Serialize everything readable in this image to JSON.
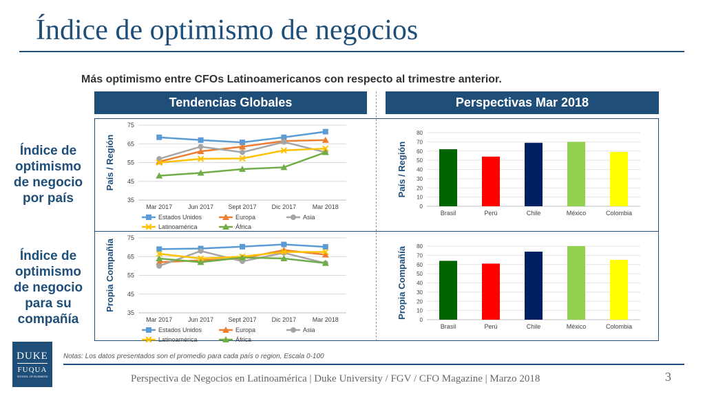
{
  "page": {
    "title": "Índice de optimismo de negocios",
    "subtitle": "Más optimismo entre CFOs Latinoamericanos con respecto al trimestre anterior.",
    "header_left": "Tendencias Globales",
    "header_right": "Perspectivas Mar 2018",
    "row1_label": "Índice de optimismo de negocio por país",
    "row2_label": "Índice de optimismo de negocio para su compañía",
    "notes": "Notas:  Los datos presentados son el promedio para cada país o region, Escala 0-100",
    "footer": "Perspectiva de Negocios en Latinoamérica | Duke University / FGV / CFO Magazine | Marzo 2018",
    "page_number": "3",
    "logo": {
      "line1": "DUKE",
      "line2": "FUQUA",
      "line3": "SCHOOL OF BUSINESS"
    }
  },
  "chart_data": [
    {
      "type": "line",
      "ylabel": "País / Región",
      "ylim": [
        35,
        75
      ],
      "yticks": [
        35,
        45,
        55,
        65,
        75
      ],
      "categories": [
        "Mar 2017",
        "Jun 2017",
        "Sept 2017",
        "Dic 2017",
        "Mar 2018"
      ],
      "legend_position": "bottom",
      "series": [
        {
          "name": "Estados Unidos",
          "color": "#5b9bd5",
          "marker": "square",
          "values": [
            68.5,
            67.0,
            65.8,
            68.5,
            71.5
          ]
        },
        {
          "name": "Europa",
          "color": "#ed7d31",
          "marker": "triangle",
          "values": [
            55.5,
            61.0,
            63.5,
            66.5,
            67.0
          ]
        },
        {
          "name": "Asia",
          "color": "#a5a5a5",
          "marker": "circle",
          "values": [
            57.0,
            63.5,
            60.5,
            66.0,
            60.5
          ]
        },
        {
          "name": "Latinoamérica",
          "color": "#ffc000",
          "marker": "x",
          "values": [
            55.0,
            57.0,
            57.2,
            61.5,
            62.5
          ]
        },
        {
          "name": "África",
          "color": "#70ad47",
          "marker": "triangle",
          "values": [
            48.0,
            49.5,
            51.5,
            52.5,
            60.5
          ]
        }
      ]
    },
    {
      "type": "bar",
      "ylabel": "País / Región",
      "ylim": [
        0,
        80
      ],
      "yticks": [
        0,
        10,
        20,
        30,
        40,
        50,
        60,
        70,
        80
      ],
      "categories": [
        "Brasil",
        "Perú",
        "Chile",
        "México",
        "Colombia"
      ],
      "colors": [
        "#006400",
        "#ff0000",
        "#002060",
        "#92d050",
        "#ffff00"
      ],
      "values": [
        62,
        54,
        69,
        70,
        59
      ]
    },
    {
      "type": "line",
      "ylabel": "Propia Compañía",
      "ylim": [
        35,
        75
      ],
      "yticks": [
        35,
        45,
        55,
        65,
        75
      ],
      "categories": [
        "Mar 2017",
        "Jun 2017",
        "Sept 2017",
        "Dic 2017",
        "Mar 2018"
      ],
      "legend_position": "bottom",
      "series": [
        {
          "name": "Estados Unidos",
          "color": "#5b9bd5",
          "marker": "square",
          "values": [
            69.0,
            69.3,
            70.3,
            71.5,
            70.2
          ]
        },
        {
          "name": "Europa",
          "color": "#ed7d31",
          "marker": "triangle",
          "values": [
            62.0,
            63.0,
            64.0,
            68.5,
            66.0
          ]
        },
        {
          "name": "Asia",
          "color": "#a5a5a5",
          "marker": "circle",
          "values": [
            60.0,
            68.0,
            62.5,
            67.0,
            61.5
          ]
        },
        {
          "name": "Latinoamérica",
          "color": "#ffc000",
          "marker": "x",
          "values": [
            66.5,
            64.0,
            65.0,
            67.5,
            67.5
          ]
        },
        {
          "name": "África",
          "color": "#70ad47",
          "marker": "triangle",
          "values": [
            64.0,
            62.0,
            64.5,
            64.0,
            61.5
          ]
        }
      ]
    },
    {
      "type": "bar",
      "ylabel": "Propia Compañía",
      "ylim": [
        0,
        80
      ],
      "yticks": [
        0,
        10,
        20,
        30,
        40,
        50,
        60,
        70,
        80
      ],
      "categories": [
        "Brasil",
        "Perú",
        "Chile",
        "México",
        "Colombia"
      ],
      "colors": [
        "#006400",
        "#ff0000",
        "#002060",
        "#92d050",
        "#ffff00"
      ],
      "values": [
        64,
        61,
        74,
        80,
        65
      ]
    }
  ]
}
